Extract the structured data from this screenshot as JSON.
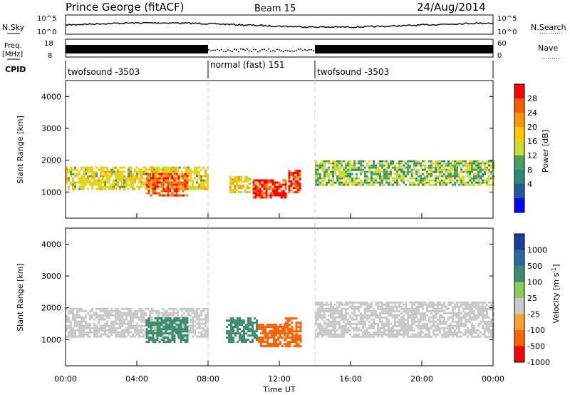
{
  "header": {
    "title": "Prince George (fitACF)",
    "beam": "Beam 15",
    "date": "24/Aug/2014"
  },
  "noise_panel": {
    "left_label": "N.Sky",
    "left_ticks": [
      "10^5",
      "10^0"
    ],
    "right_label": "N.Search",
    "right_ticks": [
      "10^5",
      "10^0"
    ]
  },
  "freq_panel": {
    "left_label_1": "Freq.",
    "left_label_2": "[MHz]",
    "left_ticks": [
      "18",
      "8"
    ],
    "right_label": "Nave",
    "right_ticks": [
      "60",
      "0"
    ]
  },
  "cpid_panel": {
    "label": "CPID",
    "segments": [
      {
        "label": "twofsound -3503",
        "start": "00:00",
        "end": "08:00"
      },
      {
        "label": "normal (fast) 151",
        "start": "08:00",
        "end": "14:00"
      },
      {
        "label": "twofsound -3503",
        "start": "14:00",
        "end": "24:00"
      }
    ]
  },
  "x_axis": {
    "ticks": [
      "00:00",
      "04:00",
      "08:00",
      "12:00",
      "16:00",
      "20:00",
      "00:00"
    ],
    "label": "Time UT"
  },
  "power_colorbar": {
    "label": "Power [dB]",
    "ticks": [
      "28",
      "24",
      "20",
      "16",
      "12",
      "8",
      "4"
    ],
    "colors": [
      "#ff0000",
      "#ff5a00",
      "#ff9600",
      "#ffc800",
      "#c8dc32",
      "#4aa060",
      "#2a8a78",
      "#1e5aa0",
      "#0000ff"
    ]
  },
  "velocity_colorbar": {
    "label": "Velocity [m s^-1]",
    "ticks": [
      "1000",
      "500",
      "100",
      "25",
      "-25",
      "-100",
      "-500",
      "-1000"
    ],
    "colors": [
      "#1e3ca0",
      "#2a6aa0",
      "#3c8c6e",
      "#8ccc5a",
      "#c8c8c8",
      "#ffa032",
      "#ff6400",
      "#ff0000"
    ]
  },
  "chart_data": [
    {
      "type": "heatmap",
      "title": "Power",
      "ylabel": "Slant Range [km]",
      "yticks": [
        "4000",
        "3000",
        "2000",
        "1000"
      ],
      "ylim": [
        180,
        4500
      ],
      "xlim": [
        0,
        24
      ],
      "x_units": "hours UT",
      "regions": [
        {
          "t": [
            0,
            8
          ],
          "r": [
            1100,
            1800
          ],
          "power_dB": 18
        },
        {
          "t": [
            4.5,
            6.8
          ],
          "r": [
            900,
            1600
          ],
          "power_dB": 28
        },
        {
          "t": [
            9.2,
            10.3
          ],
          "r": [
            1000,
            1500
          ],
          "power_dB": 20
        },
        {
          "t": [
            10.5,
            12.3
          ],
          "r": [
            800,
            1400
          ],
          "power_dB": 30
        },
        {
          "t": [
            12.5,
            13.2
          ],
          "r": [
            1000,
            1700
          ],
          "power_dB": 30
        },
        {
          "t": [
            14,
            24
          ],
          "r": [
            1200,
            2000
          ],
          "power_dB": 14
        }
      ]
    },
    {
      "type": "heatmap",
      "title": "Velocity",
      "ylabel": "Slant Range [km]",
      "yticks": [
        "4000",
        "3000",
        "2000",
        "1000"
      ],
      "ylim": [
        180,
        4500
      ],
      "xlim": [
        0,
        24
      ],
      "x_units": "hours UT",
      "regions": [
        {
          "t": [
            0,
            8
          ],
          "r": [
            1100,
            2000
          ],
          "velocity_ms": 0
        },
        {
          "t": [
            4.5,
            6.8
          ],
          "r": [
            900,
            1700
          ],
          "velocity_ms": 100
        },
        {
          "t": [
            9.0,
            10.8
          ],
          "r": [
            900,
            1700
          ],
          "velocity_ms": 200
        },
        {
          "t": [
            10.8,
            12.3
          ],
          "r": [
            800,
            1500
          ],
          "velocity_ms": -300
        },
        {
          "t": [
            12.3,
            13.2
          ],
          "r": [
            800,
            1700
          ],
          "velocity_ms": -500
        },
        {
          "t": [
            14,
            24
          ],
          "r": [
            1100,
            2200
          ],
          "velocity_ms": 0
        }
      ]
    }
  ]
}
